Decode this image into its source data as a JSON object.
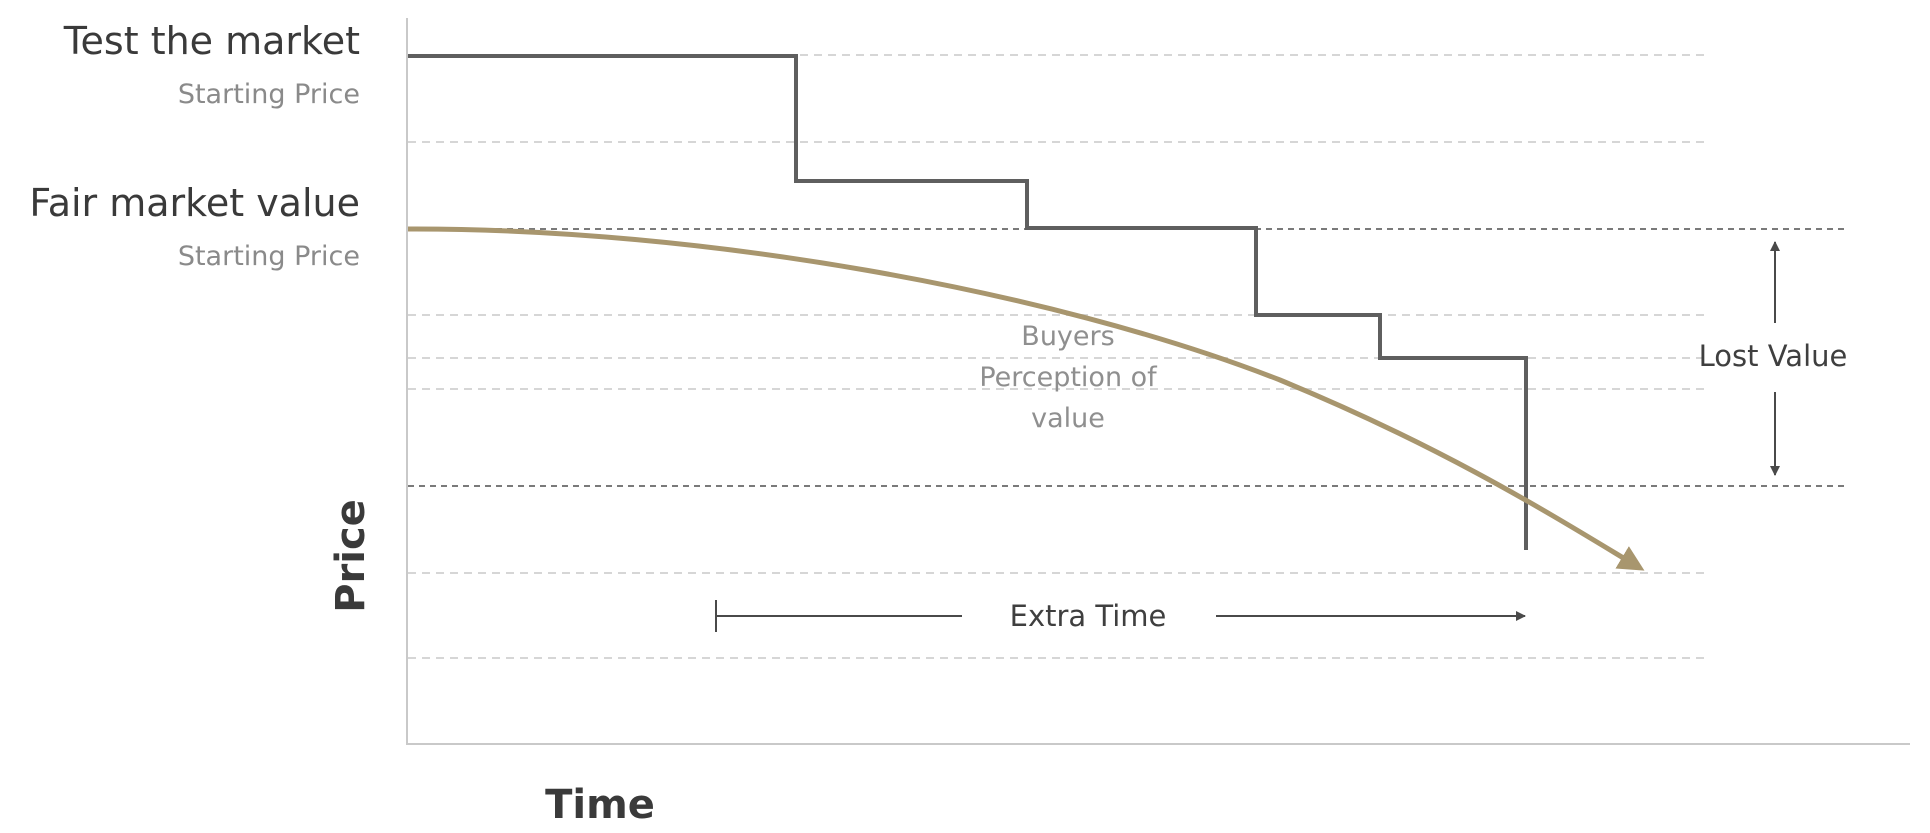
{
  "labels": {
    "test_market_title": "Test the market",
    "test_market_sub": "Starting Price",
    "fair_value_title": "Fair market value",
    "fair_value_sub": "Starting Price",
    "curve_line1": "Buyers",
    "curve_line2": "Perception of",
    "curve_line3": "value",
    "lost_value": "Lost Value",
    "extra_time": "Extra Time",
    "y_axis": "Price",
    "x_axis": "Time"
  },
  "colors": {
    "axis": "#c9c9c9",
    "grid": "#d6d6d6",
    "ref_dashed": "#7a7a7a",
    "step_line": "#5f5f5f",
    "curve": "#a8966e",
    "title_text": "#3a3a3a",
    "sub_text": "#8a8a8a",
    "curve_text": "#8f8f8f",
    "annotation_text": "#3f3f3f",
    "arrow": "#4a4a4a"
  }
}
